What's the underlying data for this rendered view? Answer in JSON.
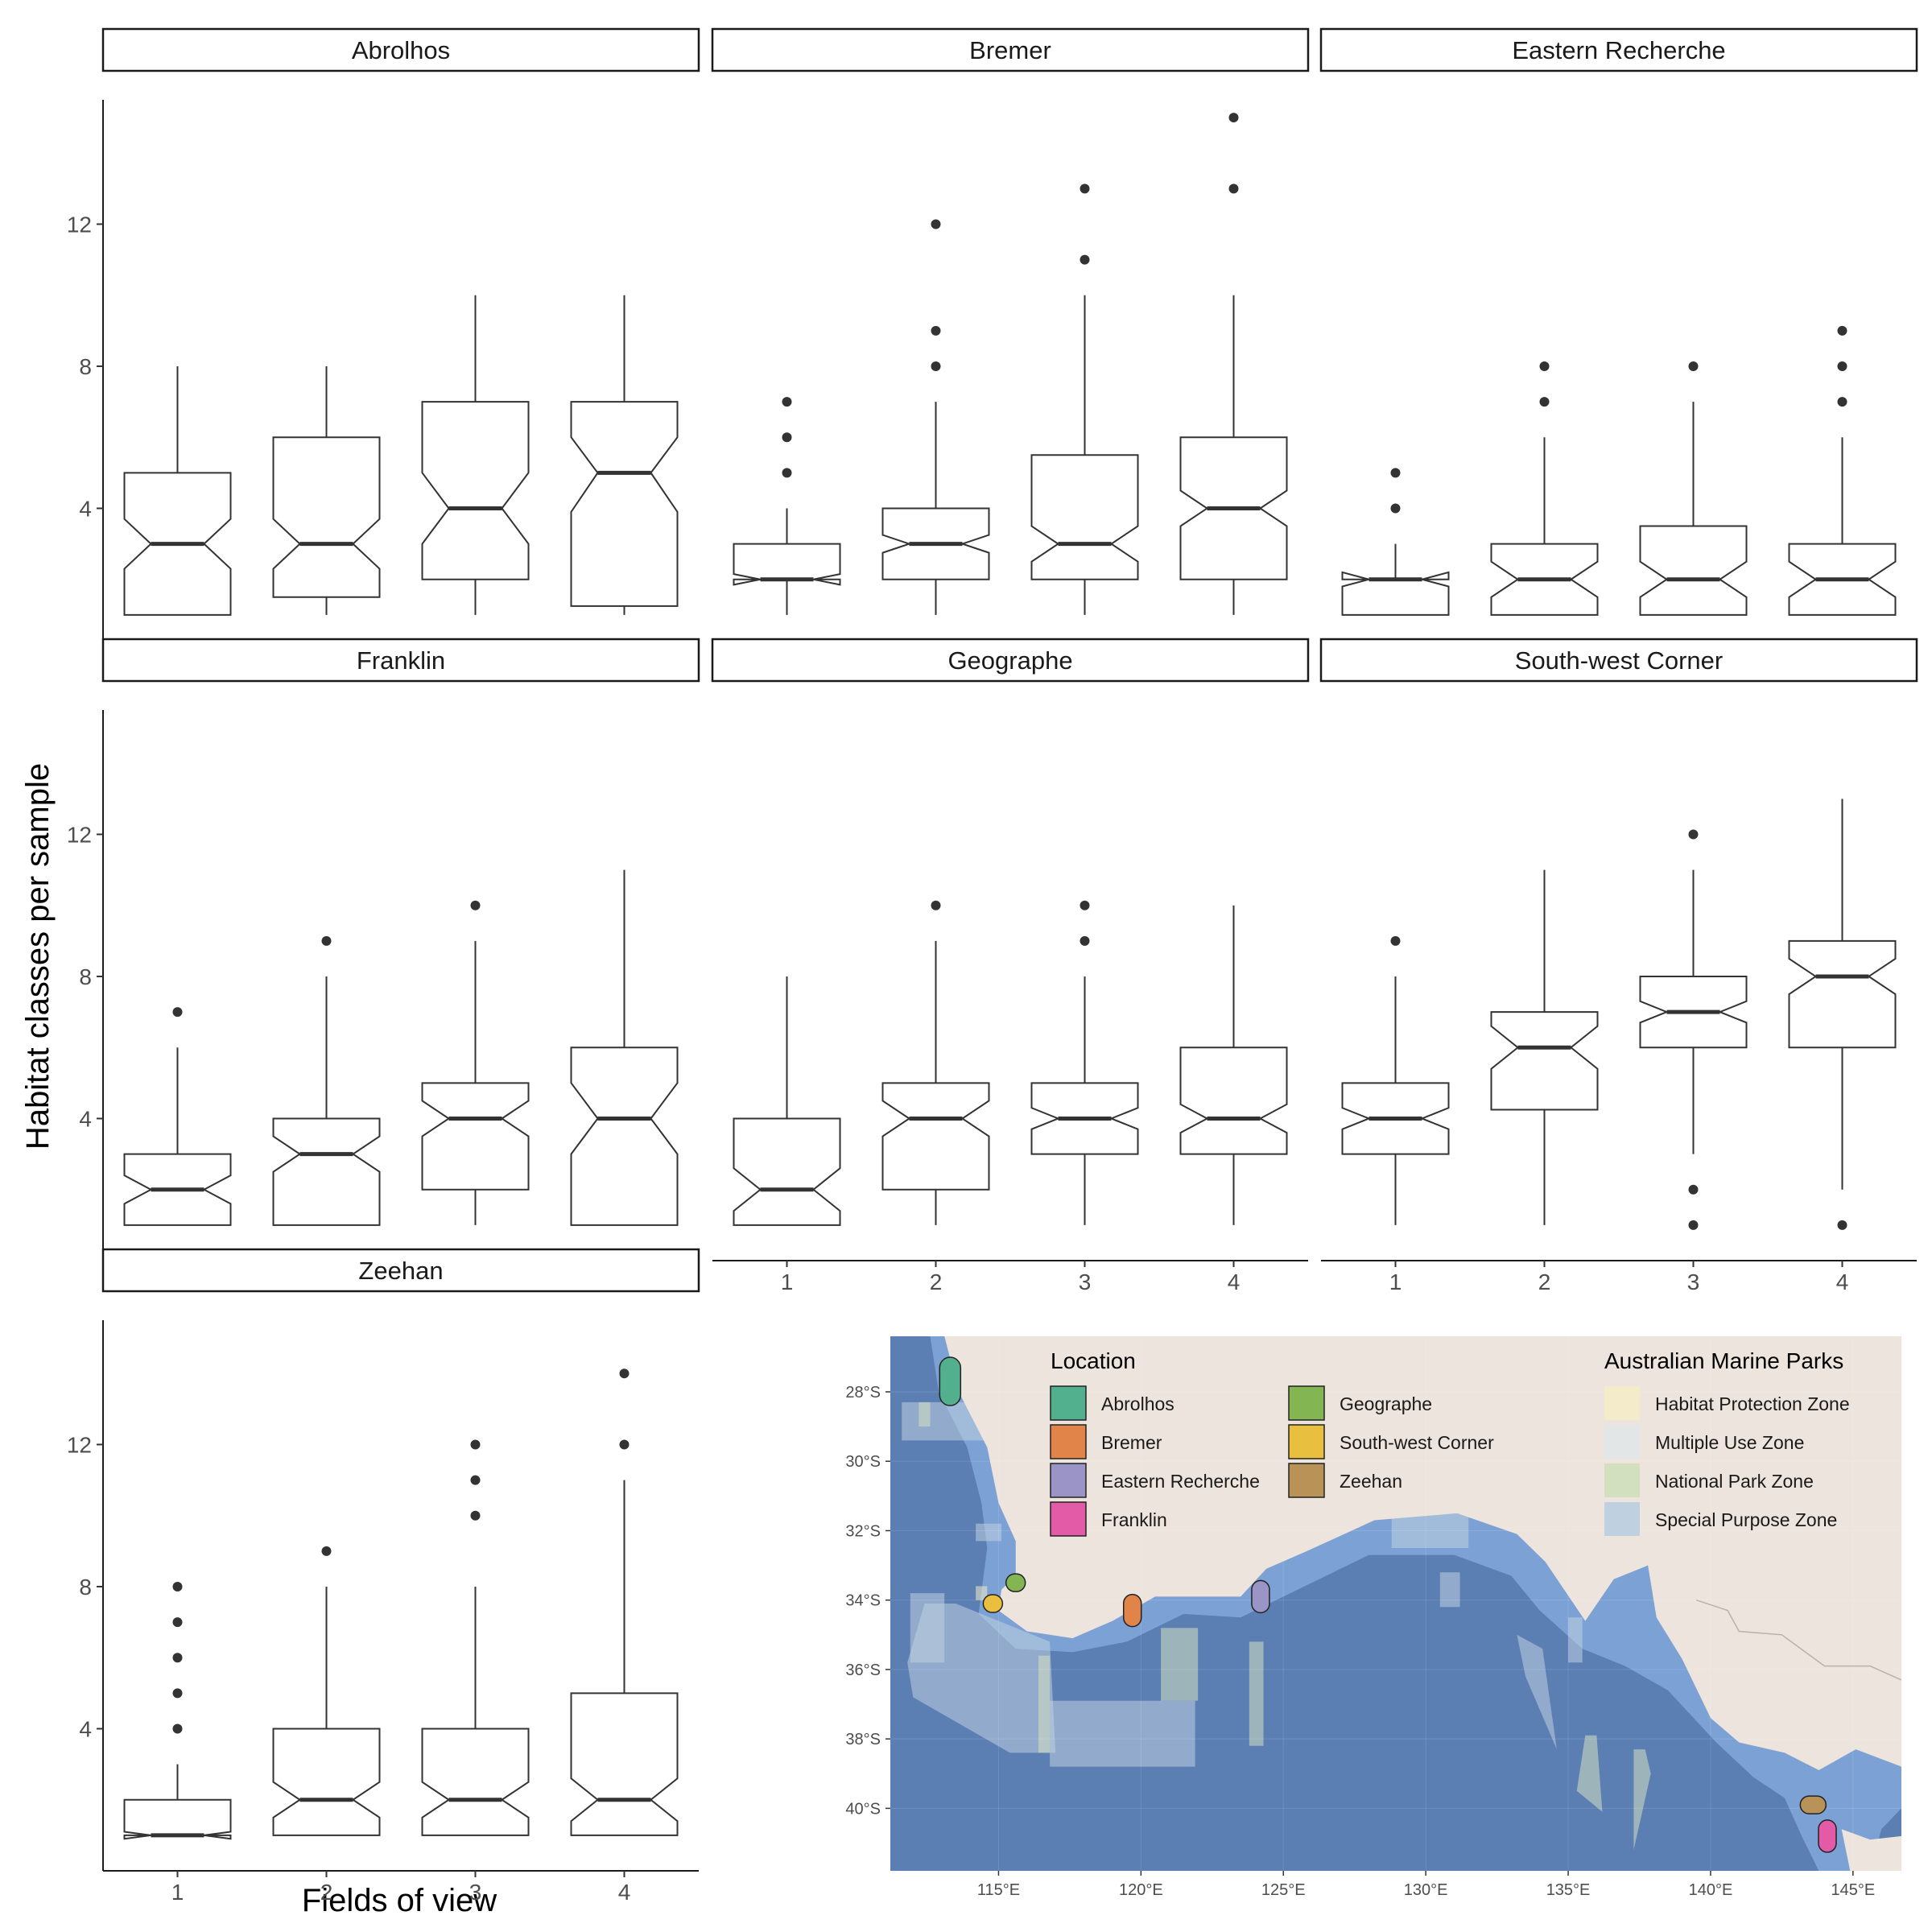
{
  "chart_data": [
    {
      "type": "boxplot",
      "notched": true,
      "layout": "facet_wrap",
      "xlabel": "Fields of view",
      "ylabel": "Habitat classes per sample",
      "x_categories": [
        "1",
        "2",
        "3",
        "4"
      ],
      "ylim": [
        0,
        15.5
      ],
      "y_ticks": [
        "4",
        "8",
        "12"
      ],
      "panels": [
        {
          "name": "Abrolhos",
          "boxes": [
            {
              "x": "1",
              "whisker_low": 1,
              "q1": 1,
              "median": 3,
              "q3": 5,
              "whisker_high": 8,
              "notch_low": 2.3,
              "notch_high": 3.7,
              "outliers": []
            },
            {
              "x": "2",
              "whisker_low": 1,
              "q1": 1.5,
              "median": 3,
              "q3": 6,
              "whisker_high": 8,
              "notch_low": 2.3,
              "notch_high": 3.7,
              "outliers": []
            },
            {
              "x": "3",
              "whisker_low": 1,
              "q1": 2,
              "median": 4,
              "q3": 7,
              "whisker_high": 10,
              "notch_low": 3.0,
              "notch_high": 5.0,
              "outliers": []
            },
            {
              "x": "4",
              "whisker_low": 1,
              "q1": 1.25,
              "median": 5,
              "q3": 7,
              "whisker_high": 10,
              "notch_low": 3.9,
              "notch_high": 6.0,
              "outliers": []
            }
          ]
        },
        {
          "name": "Bremer",
          "boxes": [
            {
              "x": "1",
              "whisker_low": 1,
              "q1": 2,
              "median": 2,
              "q3": 3,
              "whisker_high": 4,
              "notch_low": 1.85,
              "notch_high": 2.15,
              "outliers": [
                5,
                6,
                7
              ]
            },
            {
              "x": "2",
              "whisker_low": 1,
              "q1": 2,
              "median": 3,
              "q3": 4,
              "whisker_high": 7,
              "notch_low": 2.75,
              "notch_high": 3.25,
              "outliers": [
                8,
                9,
                12
              ]
            },
            {
              "x": "3",
              "whisker_low": 1,
              "q1": 2,
              "median": 3,
              "q3": 5.5,
              "whisker_high": 10,
              "notch_low": 2.5,
              "notch_high": 3.5,
              "outliers": [
                11,
                13
              ]
            },
            {
              "x": "4",
              "whisker_low": 1,
              "q1": 2,
              "median": 4,
              "q3": 6,
              "whisker_high": 10,
              "notch_low": 3.5,
              "notch_high": 4.5,
              "outliers": [
                13,
                15
              ]
            }
          ]
        },
        {
          "name": "Eastern Recherche",
          "boxes": [
            {
              "x": "1",
              "whisker_low": 1,
              "q1": 1,
              "median": 2,
              "q3": 2,
              "whisker_high": 3,
              "notch_low": 1.8,
              "notch_high": 2.2,
              "outliers": [
                4,
                5
              ]
            },
            {
              "x": "2",
              "whisker_low": 1,
              "q1": 1,
              "median": 2,
              "q3": 3,
              "whisker_high": 6,
              "notch_low": 1.5,
              "notch_high": 2.5,
              "outliers": [
                7,
                8
              ]
            },
            {
              "x": "3",
              "whisker_low": 1,
              "q1": 1,
              "median": 2,
              "q3": 3.5,
              "whisker_high": 7,
              "notch_low": 1.5,
              "notch_high": 2.5,
              "outliers": [
                8
              ]
            },
            {
              "x": "4",
              "whisker_low": 1,
              "q1": 1,
              "median": 2,
              "q3": 3,
              "whisker_high": 6,
              "notch_low": 1.5,
              "notch_high": 2.5,
              "outliers": [
                7,
                8,
                9
              ]
            }
          ]
        },
        {
          "name": "Franklin",
          "boxes": [
            {
              "x": "1",
              "whisker_low": 1,
              "q1": 1,
              "median": 2,
              "q3": 3,
              "whisker_high": 6,
              "notch_low": 1.6,
              "notch_high": 2.4,
              "outliers": [
                7
              ]
            },
            {
              "x": "2",
              "whisker_low": 1,
              "q1": 1,
              "median": 3,
              "q3": 4,
              "whisker_high": 8,
              "notch_low": 2.5,
              "notch_high": 3.5,
              "outliers": [
                9
              ]
            },
            {
              "x": "3",
              "whisker_low": 1,
              "q1": 2,
              "median": 4,
              "q3": 5,
              "whisker_high": 9,
              "notch_low": 3.5,
              "notch_high": 4.5,
              "outliers": [
                10
              ]
            },
            {
              "x": "4",
              "whisker_low": 1,
              "q1": 1,
              "median": 4,
              "q3": 6,
              "whisker_high": 11,
              "notch_low": 3.0,
              "notch_high": 5.0,
              "outliers": []
            }
          ]
        },
        {
          "name": "Geographe",
          "boxes": [
            {
              "x": "1",
              "whisker_low": 1,
              "q1": 1,
              "median": 2,
              "q3": 4,
              "whisker_high": 8,
              "notch_low": 1.4,
              "notch_high": 2.6,
              "outliers": []
            },
            {
              "x": "2",
              "whisker_low": 1,
              "q1": 2,
              "median": 4,
              "q3": 5,
              "whisker_high": 9,
              "notch_low": 3.5,
              "notch_high": 4.5,
              "outliers": [
                10
              ]
            },
            {
              "x": "3",
              "whisker_low": 1,
              "q1": 3,
              "median": 4,
              "q3": 5,
              "whisker_high": 8,
              "notch_low": 3.7,
              "notch_high": 4.3,
              "outliers": [
                9,
                10
              ]
            },
            {
              "x": "4",
              "whisker_low": 1,
              "q1": 3,
              "median": 4,
              "q3": 6,
              "whisker_high": 10,
              "notch_low": 3.6,
              "notch_high": 4.4,
              "outliers": []
            }
          ]
        },
        {
          "name": "South-west Corner",
          "boxes": [
            {
              "x": "1",
              "whisker_low": 1,
              "q1": 3,
              "median": 4,
              "q3": 5,
              "whisker_high": 8,
              "notch_low": 3.7,
              "notch_high": 4.3,
              "outliers": [
                9
              ]
            },
            {
              "x": "2",
              "whisker_low": 1,
              "q1": 4.25,
              "median": 6,
              "q3": 7,
              "whisker_high": 11,
              "notch_low": 5.4,
              "notch_high": 6.6,
              "outliers": []
            },
            {
              "x": "3",
              "whisker_low": 3,
              "q1": 6,
              "median": 7,
              "q3": 8,
              "whisker_high": 11,
              "notch_low": 6.7,
              "notch_high": 7.3,
              "outliers": [
                1,
                2,
                12
              ]
            },
            {
              "x": "4",
              "whisker_low": 2,
              "q1": 6,
              "median": 8,
              "q3": 9,
              "whisker_high": 13,
              "notch_low": 7.5,
              "notch_high": 8.5,
              "outliers": [
                1
              ]
            }
          ]
        },
        {
          "name": "Zeehan",
          "boxes": [
            {
              "x": "1",
              "whisker_low": 1,
              "q1": 1,
              "median": 1,
              "q3": 2,
              "whisker_high": 3,
              "notch_low": 0.9,
              "notch_high": 1.1,
              "outliers": [
                4,
                5,
                6,
                7,
                8
              ]
            },
            {
              "x": "2",
              "whisker_low": 1,
              "q1": 1,
              "median": 2,
              "q3": 4,
              "whisker_high": 8,
              "notch_low": 1.5,
              "notch_high": 2.5,
              "outliers": [
                9
              ]
            },
            {
              "x": "3",
              "whisker_low": 1,
              "q1": 1,
              "median": 2,
              "q3": 4,
              "whisker_high": 8,
              "notch_low": 1.5,
              "notch_high": 2.5,
              "outliers": [
                10,
                11,
                12
              ]
            },
            {
              "x": "4",
              "whisker_low": 1,
              "q1": 1,
              "median": 2,
              "q3": 5,
              "whisker_high": 11,
              "notch_low": 1.4,
              "notch_high": 2.6,
              "outliers": [
                12,
                14
              ]
            }
          ]
        }
      ]
    },
    {
      "type": "map",
      "x_ticks": [
        "115°E",
        "120°E",
        "125°E",
        "130°E",
        "135°E",
        "140°E",
        "145°E"
      ],
      "x_tick_values": [
        115,
        120,
        125,
        130,
        135,
        140,
        145
      ],
      "y_ticks": [
        "28°S",
        "30°S",
        "32°S",
        "34°S",
        "36°S",
        "38°S",
        "40°S"
      ],
      "y_tick_values": [
        28,
        30,
        32,
        34,
        36,
        38,
        40
      ],
      "xlim": [
        111.2,
        146.7
      ],
      "ylim": [
        26.4,
        41.8
      ],
      "land_color": "#ede4dd",
      "ocean_color": "#5b7eb3",
      "shelf_color": "#7fa6d8",
      "legends": [
        {
          "title": "Location",
          "items": [
            {
              "label": "Abrolhos",
              "color": "#52b08f"
            },
            {
              "label": "Bremer",
              "color": "#e0844a"
            },
            {
              "label": "Eastern Recherche",
              "color": "#9a95c6"
            },
            {
              "label": "Franklin",
              "color": "#e35ba6"
            },
            {
              "label": "Geographe",
              "color": "#83b552"
            },
            {
              "label": "South-west Corner",
              "color": "#e8bf3e"
            },
            {
              "label": "Zeehan",
              "color": "#b99257"
            }
          ]
        },
        {
          "title": "Australian Marine Parks",
          "items": [
            {
              "label": "Habitat Protection Zone",
              "color": "#f3ebc9"
            },
            {
              "label": "Multiple Use Zone",
              "color": "#e3e6e6"
            },
            {
              "label": "National Park Zone",
              "color": "#d3e0c0"
            },
            {
              "label": "Special Purpose Zone",
              "color": "#bfd0e0"
            }
          ]
        }
      ],
      "sites": [
        {
          "name": "Abrolhos",
          "lon": 113.3,
          "lat": 27.7
        },
        {
          "name": "Geographe",
          "lon": 115.6,
          "lat": 33.5
        },
        {
          "name": "South-west Corner",
          "lon": 114.8,
          "lat": 34.1
        },
        {
          "name": "Bremer",
          "lon": 119.7,
          "lat": 34.3
        },
        {
          "name": "Eastern Recherche",
          "lon": 124.2,
          "lat": 33.9
        },
        {
          "name": "Zeehan",
          "lon": 143.6,
          "lat": 39.9
        },
        {
          "name": "Franklin",
          "lon": 144.1,
          "lat": 40.8
        }
      ]
    }
  ]
}
